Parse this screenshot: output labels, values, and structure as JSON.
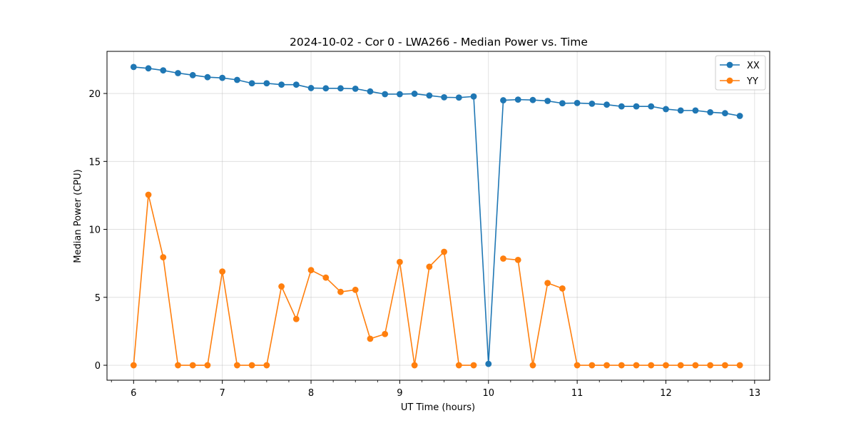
{
  "chart_data": {
    "type": "line",
    "title": "2024-10-02 - Cor 0 - LWA266 - Median Power vs. Time",
    "xlabel": "UT Time (hours)",
    "ylabel": "Median Power (CPU)",
    "xlim": [
      5.7,
      13.17
    ],
    "ylim": [
      -1.1,
      23.1
    ],
    "xticks": [
      6,
      7,
      8,
      9,
      10,
      11,
      12,
      13
    ],
    "xtick_labels": [
      "6",
      "7",
      "8",
      "9",
      "10",
      "11",
      "12",
      "13"
    ],
    "xminor_step": 0.25,
    "yticks": [
      0,
      5,
      10,
      15,
      20
    ],
    "ytick_labels": [
      "0",
      "5",
      "10",
      "15",
      "20"
    ],
    "grid": true,
    "legend_position": "top-right",
    "x": [
      6.0,
      6.1667,
      6.3333,
      6.5,
      6.6667,
      6.8333,
      7.0,
      7.1667,
      7.3333,
      7.5,
      7.6667,
      7.8333,
      8.0,
      8.1667,
      8.3333,
      8.5,
      8.6667,
      8.8333,
      9.0,
      9.1667,
      9.3333,
      9.5,
      9.6667,
      9.8333,
      10.0,
      10.1667,
      10.3333,
      10.5,
      10.6667,
      10.8333,
      11.0,
      11.1667,
      11.3333,
      11.5,
      11.6667,
      11.8333,
      12.0,
      12.1667,
      12.3333,
      12.5,
      12.6667,
      12.8333
    ],
    "series": [
      {
        "name": "XX",
        "color": "#1f77b4",
        "values": [
          21.95,
          21.85,
          21.7,
          21.5,
          21.35,
          21.2,
          21.15,
          21.0,
          20.75,
          20.75,
          20.65,
          20.65,
          20.4,
          20.38,
          20.38,
          20.35,
          20.15,
          19.95,
          19.95,
          19.98,
          19.85,
          19.72,
          19.7,
          19.78,
          0.1,
          19.5,
          19.55,
          19.52,
          19.45,
          19.28,
          19.3,
          19.25,
          19.18,
          19.05,
          19.05,
          19.05,
          18.85,
          18.75,
          18.75,
          18.62,
          18.55,
          18.35
        ]
      },
      {
        "name": "YY",
        "color": "#ff7f0e",
        "values": [
          0.0,
          12.55,
          7.95,
          0.0,
          0.0,
          0.0,
          6.9,
          0.0,
          0.0,
          0.0,
          5.8,
          3.4,
          7.0,
          6.45,
          5.4,
          5.55,
          1.95,
          2.3,
          7.6,
          0.0,
          7.25,
          8.35,
          0.0,
          0.0,
          null,
          7.85,
          7.75,
          0.0,
          6.05,
          5.65,
          0.0,
          0.0,
          0.0,
          0.0,
          0.0,
          0.0,
          0.0,
          0.0,
          0.0,
          0.0,
          0.0,
          0.0
        ]
      }
    ]
  }
}
